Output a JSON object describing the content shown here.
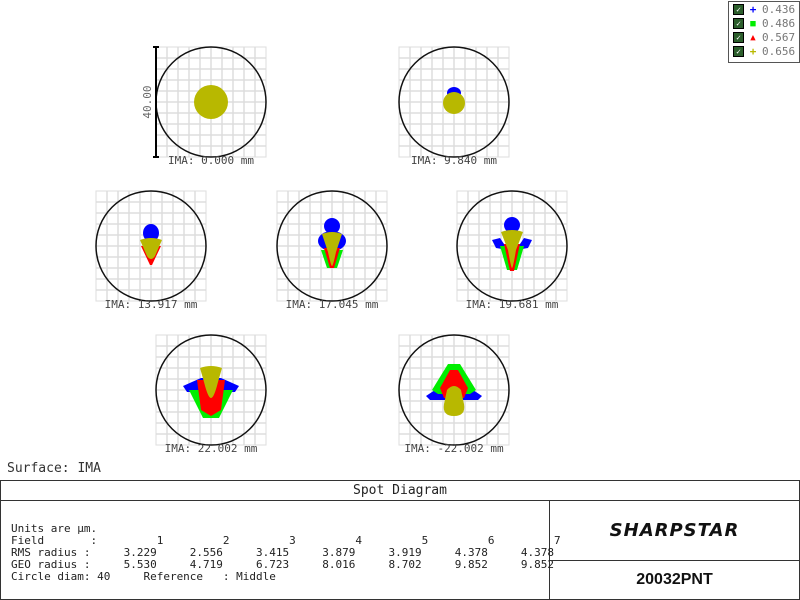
{
  "legend": [
    {
      "wavelength": "0.436",
      "color": "#0000ff",
      "marker": "+"
    },
    {
      "wavelength": "0.486",
      "color": "#00ee00",
      "marker": "■"
    },
    {
      "wavelength": "0.567",
      "color": "#ff0000",
      "marker": "▲"
    },
    {
      "wavelength": "0.656",
      "color": "#b8b800",
      "marker": "+"
    }
  ],
  "chart_data": {
    "type": "scatter",
    "title": "Spot Diagram",
    "surface": "Surface: IMA",
    "scale_bar_label": "40.00",
    "fields": [
      {
        "field": 1,
        "label": "IMA: 0.000 mm",
        "rms": 3.229,
        "geo": 5.53
      },
      {
        "field": 2,
        "label": "IMA: 9.840 mm",
        "rms": 2.556,
        "geo": 4.719
      },
      {
        "field": 3,
        "label": "IMA: 13.917 mm",
        "rms": 3.415,
        "geo": 6.723
      },
      {
        "field": 4,
        "label": "IMA: 17.045 mm",
        "rms": 3.879,
        "geo": 8.016
      },
      {
        "field": 5,
        "label": "IMA: 19.681 mm",
        "rms": 3.919,
        "geo": 8.702
      },
      {
        "field": 6,
        "label": "IMA: 22.002 mm",
        "rms": 4.378,
        "geo": 9.852
      },
      {
        "field": 7,
        "label": "IMA: -22.002 mm",
        "rms": 4.378,
        "geo": 9.852
      }
    ],
    "units": "µm",
    "circle_diam": 40,
    "reference": "Middle"
  },
  "footer": {
    "title": "Spot Diagram",
    "units_line": "Units are µm.",
    "field_line": "Field       :         1         2         3         4         5         6         7",
    "rms_line": "RMS radius :     3.229     2.556     3.415     3.879     3.919     4.378     4.378",
    "geo_line": "GEO radius :     5.530     4.719     6.723     8.016     8.702     9.852     9.852",
    "circle_line": "Circle diam: 40     Reference   : Middle",
    "brand": "SHARPSTAR",
    "model": "20032PNT"
  }
}
